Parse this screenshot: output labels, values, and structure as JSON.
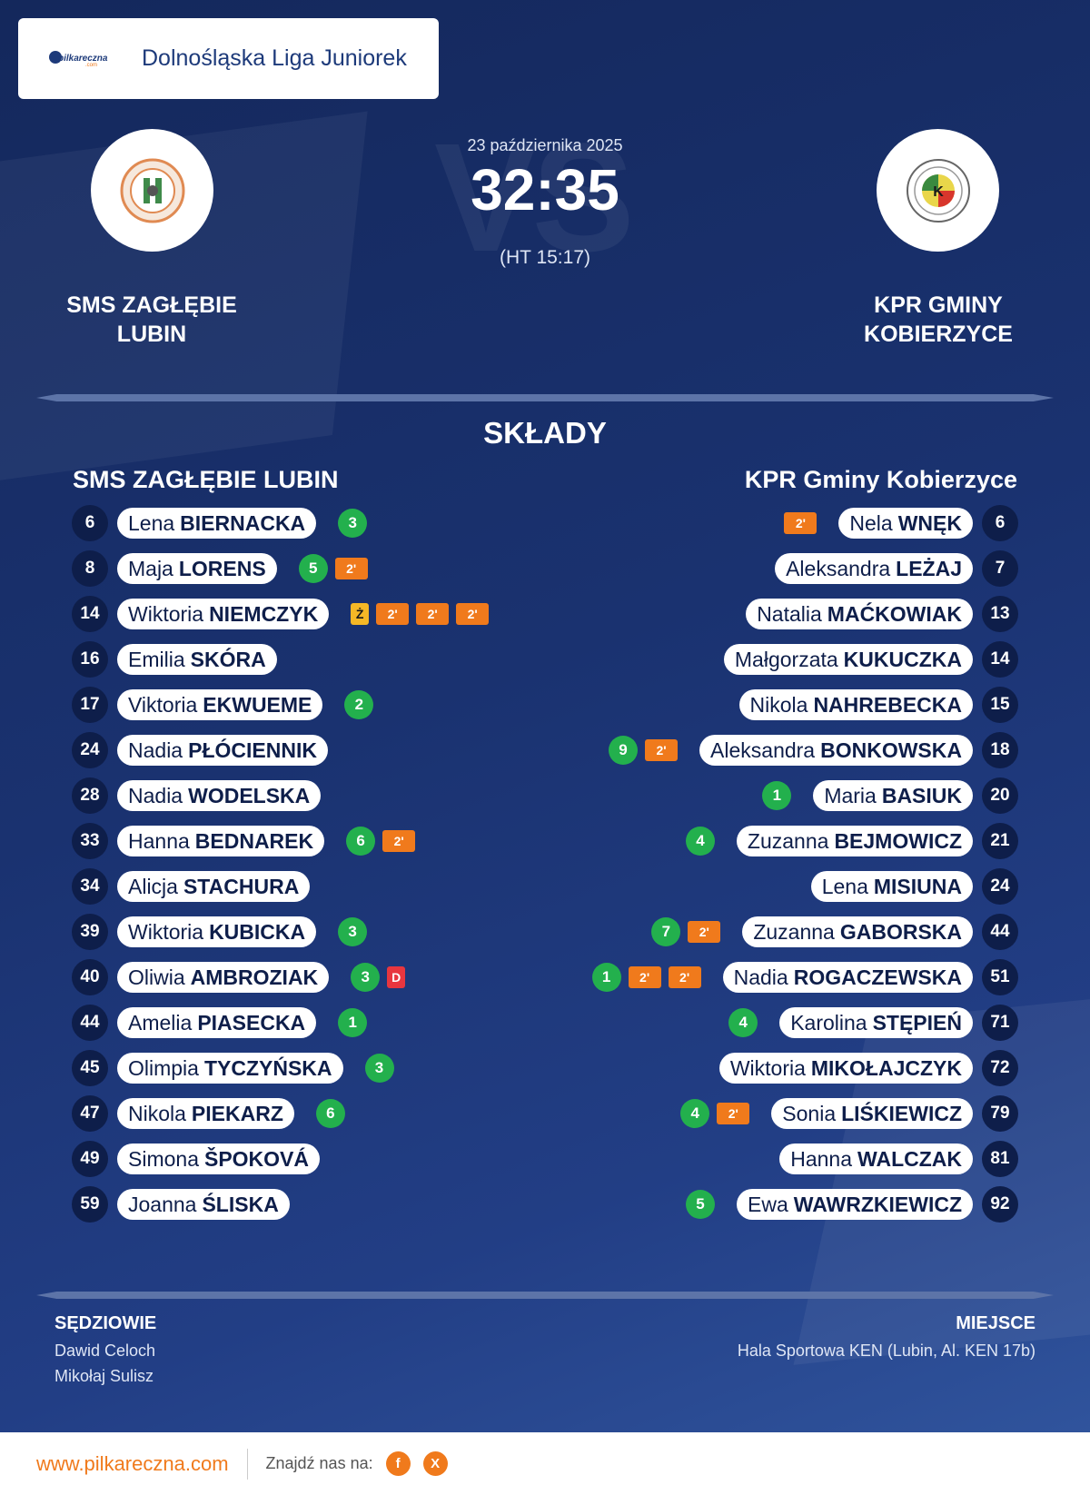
{
  "league": {
    "name": "Dolnośląska Liga Juniorek",
    "logo_text": "pilkareczna",
    "logo_sub": ".com"
  },
  "match": {
    "date": "23 października 2025",
    "score": "32:35",
    "halftime": "(HT 15:17)",
    "vs_watermark": "VS",
    "home_name_line1": "SMS ZAGŁĘBIE",
    "home_name_line2": "LUBIN",
    "away_name_line1": "KPR GMINY",
    "away_name_line2": "KOBIERZYCE"
  },
  "lineups": {
    "title": "SKŁADY",
    "home_title": "SMS ZAGŁĘBIE LUBIN",
    "away_title": "KPR Gminy Kobierzyce",
    "home": [
      {
        "num": "6",
        "first": "Lena",
        "last": "BIERNACKA",
        "goals": "3",
        "cards": []
      },
      {
        "num": "8",
        "first": "Maja",
        "last": "LORENS",
        "goals": "5",
        "cards": [
          "2'"
        ]
      },
      {
        "num": "14",
        "first": "Wiktoria",
        "last": "NIEMCZYK",
        "goals": "",
        "cards": [
          "Ż",
          "2'",
          "2'",
          "2'"
        ]
      },
      {
        "num": "16",
        "first": "Emilia",
        "last": "SKÓRA",
        "goals": "",
        "cards": []
      },
      {
        "num": "17",
        "first": "Viktoria",
        "last": "EKWUEME",
        "goals": "2",
        "cards": []
      },
      {
        "num": "24",
        "first": "Nadia",
        "last": "PŁÓCIENNIK",
        "goals": "",
        "cards": []
      },
      {
        "num": "28",
        "first": "Nadia",
        "last": "WODELSKA",
        "goals": "",
        "cards": []
      },
      {
        "num": "33",
        "first": "Hanna",
        "last": "BEDNAREK",
        "goals": "6",
        "cards": [
          "2'"
        ]
      },
      {
        "num": "34",
        "first": "Alicja",
        "last": "STACHURA",
        "goals": "",
        "cards": []
      },
      {
        "num": "39",
        "first": "Wiktoria",
        "last": "KUBICKA",
        "goals": "3",
        "cards": []
      },
      {
        "num": "40",
        "first": "Oliwia",
        "last": "AMBROZIAK",
        "goals": "3",
        "cards": [
          "D"
        ]
      },
      {
        "num": "44",
        "first": "Amelia",
        "last": "PIASECKA",
        "goals": "1",
        "cards": []
      },
      {
        "num": "45",
        "first": "Olimpia",
        "last": "TYCZYŃSKA",
        "goals": "3",
        "cards": []
      },
      {
        "num": "47",
        "first": "Nikola",
        "last": "PIEKARZ",
        "goals": "6",
        "cards": []
      },
      {
        "num": "49",
        "first": "Simona",
        "last": "ŠPOKOVÁ",
        "goals": "",
        "cards": []
      },
      {
        "num": "59",
        "first": "Joanna",
        "last": "ŚLISKA",
        "goals": "",
        "cards": []
      }
    ],
    "away": [
      {
        "num": "6",
        "first": "Nela",
        "last": "WNĘK",
        "goals": "",
        "cards": [
          "2'"
        ]
      },
      {
        "num": "7",
        "first": "Aleksandra",
        "last": "LEŻAJ",
        "goals": "",
        "cards": []
      },
      {
        "num": "13",
        "first": "Natalia",
        "last": "MAĆKOWIAK",
        "goals": "",
        "cards": []
      },
      {
        "num": "14",
        "first": "Małgorzata",
        "last": "KUKUCZKA",
        "goals": "",
        "cards": []
      },
      {
        "num": "15",
        "first": "Nikola",
        "last": "NAHREBECKA",
        "goals": "",
        "cards": []
      },
      {
        "num": "18",
        "first": "Aleksandra",
        "last": "BONKOWSKA",
        "goals": "9",
        "cards": [
          "2'"
        ]
      },
      {
        "num": "20",
        "first": "Maria",
        "last": "BASIUK",
        "goals": "1",
        "cards": []
      },
      {
        "num": "21",
        "first": "Zuzanna",
        "last": "BEJMOWICZ",
        "goals": "4",
        "cards": []
      },
      {
        "num": "24",
        "first": "Lena",
        "last": "MISIUNA",
        "goals": "",
        "cards": []
      },
      {
        "num": "44",
        "first": "Zuzanna",
        "last": "GABORSKA",
        "goals": "7",
        "cards": [
          "2'"
        ]
      },
      {
        "num": "51",
        "first": "Nadia",
        "last": "ROGACZEWSKA",
        "goals": "1",
        "cards": [
          "2'",
          "2'"
        ]
      },
      {
        "num": "71",
        "first": "Karolina",
        "last": "STĘPIEŃ",
        "goals": "4",
        "cards": []
      },
      {
        "num": "72",
        "first": "Wiktoria",
        "last": "MIKOŁAJCZYK",
        "goals": "",
        "cards": []
      },
      {
        "num": "79",
        "first": "Sonia",
        "last": "LIŚKIEWICZ",
        "goals": "4",
        "cards": [
          "2'"
        ]
      },
      {
        "num": "81",
        "first": "Hanna",
        "last": "WALCZAK",
        "goals": "",
        "cards": []
      },
      {
        "num": "92",
        "first": "Ewa",
        "last": "WAWRZKIEWICZ",
        "goals": "5",
        "cards": []
      }
    ]
  },
  "officials": {
    "title": "SĘDZIOWIE",
    "names": [
      "Dawid Celoch",
      "Mikołaj Sulisz"
    ]
  },
  "venue": {
    "title": "MIEJSCE",
    "name": "Hala Sportowa KEN (Lubin, Al. KEN 17b)"
  },
  "footer": {
    "site": "www.pilkareczna.com",
    "find_label": "Znajdź nas na:",
    "social": [
      {
        "icon": "facebook-icon",
        "glyph": "f"
      },
      {
        "icon": "x-icon",
        "glyph": "X"
      }
    ]
  },
  "colors": {
    "background": "#1a3270",
    "accent": "#f07a1c",
    "goal": "#23b04d",
    "penalty_card": "#f07a1c",
    "yellow_card": "#f5b826",
    "red_card": "#e8363f",
    "number_bg": "#0e1e4a"
  }
}
